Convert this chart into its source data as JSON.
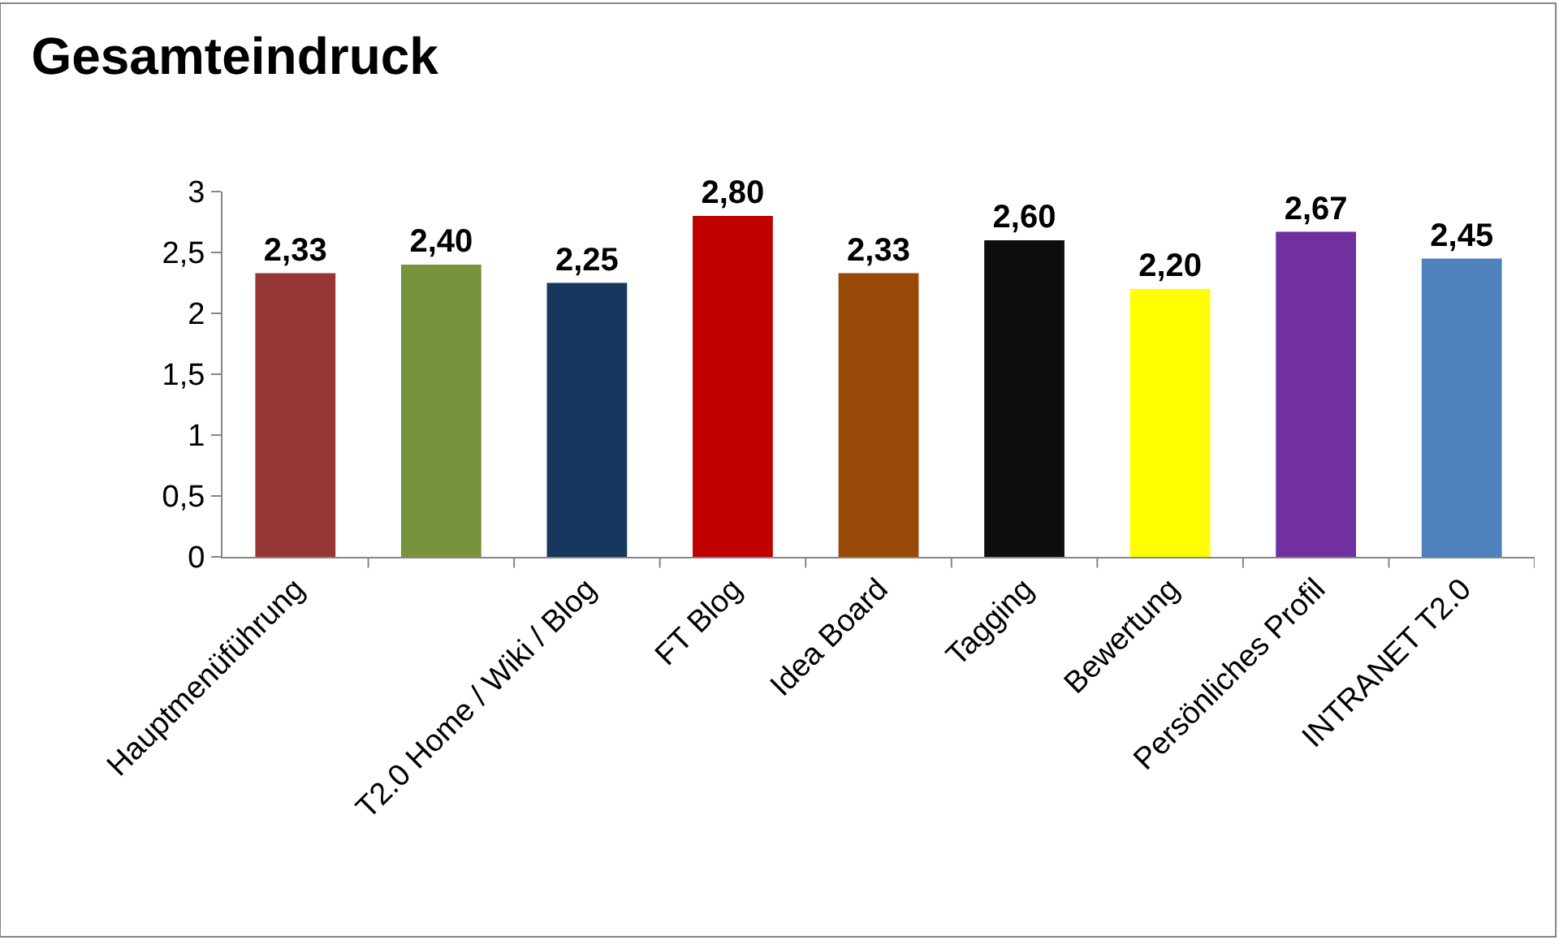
{
  "chart_data": {
    "type": "bar",
    "title": "Gesamteindruck",
    "categories": [
      "Hauptmenüführung",
      null,
      "T2.0 Home / Wiki / Blog",
      "FT Blog",
      "Idea Board",
      "Tagging",
      "Bewertung",
      "Persönliches Profil",
      "INTRANET T2.0"
    ],
    "values": [
      2.33,
      2.4,
      2.25,
      2.8,
      2.33,
      2.6,
      2.2,
      2.67,
      2.45
    ],
    "colors": [
      "#953735",
      "#77933c",
      "#17375e",
      "#c00000",
      "#984807",
      "#0d0d0d",
      "#ffff00",
      "#7030a0",
      "#4f81bd"
    ],
    "value_labels": [
      "2,33",
      "2,40",
      "2,25",
      "2,80",
      "2,33",
      "2,60",
      "2,20",
      "2,67",
      "2,45"
    ],
    "ylim": [
      0,
      3
    ],
    "yticks": [
      0,
      {
        "value": 0.5,
        "label": "0,5"
      },
      1,
      {
        "value": 1.5,
        "label": "1,5"
      },
      2,
      {
        "value": 2.5,
        "label": "2,5"
      },
      3
    ]
  }
}
